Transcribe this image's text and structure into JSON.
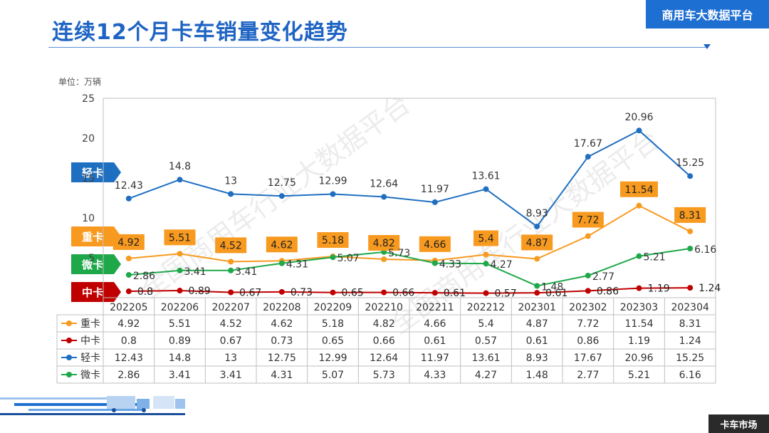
{
  "header": {
    "title": "连续12个月卡车销量变化趋势",
    "brand": "商用车大数据平台",
    "unit": "单位：万辆",
    "footer": "卡车市场"
  },
  "legend_tags": [
    {
      "label": "轻卡",
      "color": "#1f6fc1"
    },
    {
      "label": "重卡",
      "color": "#f79a1f"
    },
    {
      "label": "微卡",
      "color": "#1fa84a"
    },
    {
      "label": "中卡",
      "color": "#c00000"
    }
  ],
  "chart_data": {
    "type": "line",
    "categories": [
      "202205",
      "202206",
      "202207",
      "202208",
      "202209",
      "202210",
      "202211",
      "202212",
      "202301",
      "202302",
      "202303",
      "202304"
    ],
    "ylim": [
      0,
      25
    ],
    "yticks": [
      0,
      5,
      10,
      15,
      20,
      25
    ],
    "ytick_labels": [
      "",
      "5",
      "10",
      "15",
      "20",
      "25"
    ],
    "grid": false,
    "series": [
      {
        "name": "重卡",
        "color": "#f79a1f",
        "values": [
          4.92,
          5.51,
          4.52,
          4.62,
          5.18,
          4.82,
          4.66,
          5.4,
          4.87,
          7.72,
          11.54,
          8.31
        ],
        "label_style": "box"
      },
      {
        "name": "中卡",
        "color": "#c00000",
        "values": [
          0.8,
          0.89,
          0.67,
          0.73,
          0.65,
          0.66,
          0.61,
          0.57,
          0.61,
          0.86,
          1.19,
          1.24
        ],
        "label_style": "plain"
      },
      {
        "name": "轻卡",
        "color": "#1f6fc1",
        "values": [
          12.43,
          14.8,
          13,
          12.75,
          12.99,
          12.64,
          11.97,
          13.61,
          8.93,
          17.67,
          20.96,
          15.25
        ],
        "label_style": "plain"
      },
      {
        "name": "微卡",
        "color": "#1fa84a",
        "values": [
          2.86,
          3.41,
          3.41,
          4.31,
          5.07,
          5.73,
          4.33,
          4.27,
          1.48,
          2.77,
          5.21,
          6.16
        ],
        "label_style": "plain"
      }
    ],
    "table": {
      "rows": [
        {
          "name": "重卡",
          "cells": [
            "4.92",
            "5.51",
            "4.52",
            "4.62",
            "5.18",
            "4.82",
            "4.66",
            "5.4",
            "4.87",
            "7.72",
            "11.54",
            "8.31"
          ]
        },
        {
          "name": "中卡",
          "cells": [
            "0.8",
            "0.89",
            "0.67",
            "0.73",
            "0.65",
            "0.66",
            "0.61",
            "0.57",
            "0.61",
            "0.86",
            "1.19",
            "1.24"
          ]
        },
        {
          "name": "轻卡",
          "cells": [
            "12.43",
            "14.8",
            "13",
            "12.75",
            "12.99",
            "12.64",
            "11.97",
            "13.61",
            "8.93",
            "17.67",
            "20.96",
            "15.25"
          ]
        },
        {
          "name": "微卡",
          "cells": [
            "2.86",
            "3.41",
            "3.41",
            "4.31",
            "5.07",
            "5.73",
            "4.33",
            "4.27",
            "1.48",
            "2.77",
            "5.21",
            "6.16"
          ]
        }
      ]
    }
  }
}
